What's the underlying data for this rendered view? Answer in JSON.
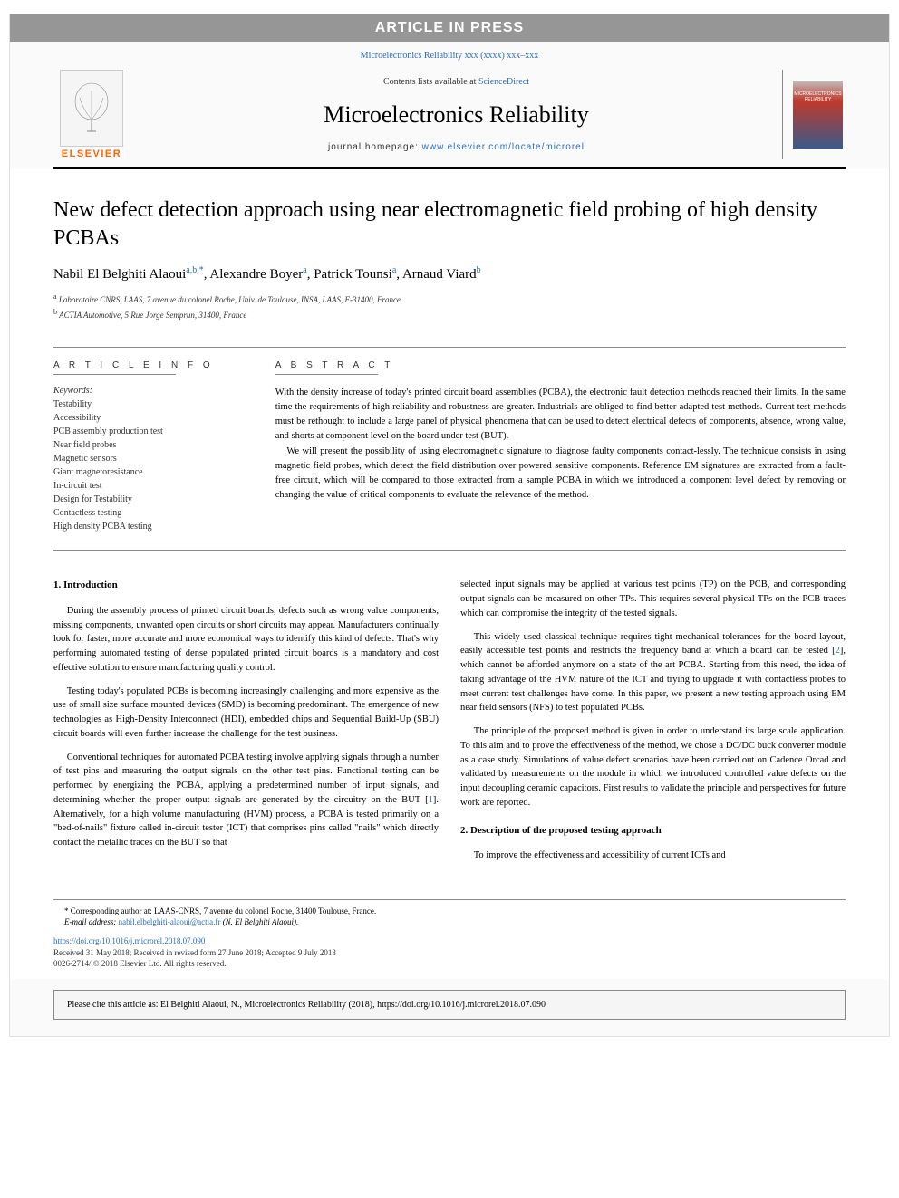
{
  "press_banner": "ARTICLE IN PRESS",
  "citation_top": "Microelectronics Reliability xxx (xxxx) xxx–xxx",
  "header": {
    "elsevier_label": "ELSEVIER",
    "contents_prefix": "Contents lists available at ",
    "contents_link": "ScienceDirect",
    "journal_name": "Microelectronics Reliability",
    "homepage_prefix": "journal homepage: ",
    "homepage_link": "www.elsevier.com/locate/microrel",
    "cover_text": "MICROELECTRONICS RELIABILITY"
  },
  "title": "New defect detection approach using near electromagnetic field probing of high density PCBAs",
  "authors_html": "Nabil El Belghiti Alaoui<sup>a,b,*</sup>, Alexandre Boyer<sup>a</sup>, Patrick Tounsi<sup>a</sup>, Arnaud Viard<sup>b</sup>",
  "affiliations": [
    {
      "sup": "a",
      "text": "Laboratoire CNRS, LAAS, 7 avenue du colonel Roche, Univ. de Toulouse, INSA, LAAS, F-31400, France"
    },
    {
      "sup": "b",
      "text": "ACTIA Automotive, 5 Rue Jorge Semprun, 31400, France"
    }
  ],
  "info": {
    "header": "A R T I C L E  I N F O",
    "keywords_label": "Keywords:",
    "keywords": [
      "Testability",
      "Accessibility",
      "PCB assembly production test",
      "Near field probes",
      "Magnetic sensors",
      "Giant magnetoresistance",
      "In-circuit test",
      "Design for Testability",
      "Contactless testing",
      "High density PCBA testing"
    ]
  },
  "abstract": {
    "header": "A B S T R A C T",
    "paragraphs": [
      "With the density increase of today's printed circuit board assemblies (PCBA), the electronic fault detection methods reached their limits. In the same time the requirements of high reliability and robustness are greater. Industrials are obliged to find better-adapted test methods. Current test methods must be rethought to include a large panel of physical phenomena that can be used to detect electrical defects of components, absence, wrong value, and shorts at component level on the board under test (BUT).",
      "We will present the possibility of using electromagnetic signature to diagnose faulty components contact-lessly. The technique consists in using magnetic field probes, which detect the field distribution over powered sensitive components. Reference EM signatures are extracted from a fault-free circuit, which will be compared to those extracted from a sample PCBA in which we introduced a component level defect by removing or changing the value of critical components to evaluate the relevance of the method."
    ]
  },
  "body": {
    "section1_heading": "1. Introduction",
    "col_left": [
      "During the assembly process of printed circuit boards, defects such as wrong value components, missing components, unwanted open circuits or short circuits may appear. Manufacturers continually look for faster, more accurate and more economical ways to identify this kind of defects. That's why performing automated testing of dense populated printed circuit boards is a mandatory and cost effective solution to ensure manufacturing quality control.",
      "Testing today's populated PCBs is becoming increasingly challenging and more expensive as the use of small size surface mounted devices (SMD) is becoming predominant. The emergence of new technologies as High-Density Interconnect (HDI), embedded chips and Sequential Build-Up (SBU) circuit boards will even further increase the challenge for the test business.",
      "Conventional techniques for automated PCBA testing involve applying signals through a number of test pins and measuring the output signals on the other test pins. Functional testing can be performed by energizing the PCBA, applying a predetermined number of input signals, and determining whether the proper output signals are generated by the circuitry on the BUT [<span class=\"ref-link\">1</span>]. Alternatively, for a high volume manufacturing (HVM) process, a PCBA is tested primarily on a \"bed-of-nails\" fixture called in-circuit tester (ICT) that comprises pins called \"nails\" which directly contact the metallic traces on the BUT so that"
    ],
    "col_right_intro": [
      "selected input signals may be applied at various test points (TP) on the PCB, and corresponding output signals can be measured on other TPs. This requires several physical TPs on the PCB traces which can compromise the integrity of the tested signals.",
      "This widely used classical technique requires tight mechanical tolerances for the board layout, easily accessible test points and restricts the frequency band at which a board can be tested [<span class=\"ref-link\">2</span>], which cannot be afforded anymore on a state of the art PCBA. Starting from this need, the idea of taking advantage of the HVM nature of the ICT and trying to upgrade it with contactless probes to meet current test challenges have come. In this paper, we present a new testing approach using EM near field sensors (NFS) to test populated PCBs.",
      "The principle of the proposed method is given in order to understand its large scale application. To this aim and to prove the effectiveness of the method, we chose a DC/DC buck converter module as a case study. Simulations of value defect scenarios have been carried out on Cadence Orcad and validated by measurements on the module in which we introduced controlled value defects on the input decoupling ceramic capacitors. First results to validate the principle and perspectives for future work are reported."
    ],
    "section2_heading": "2. Description of the proposed testing approach",
    "col_right_sec2": [
      "To improve the effectiveness and accessibility of current ICTs and"
    ]
  },
  "footer": {
    "corresponding_text": "* Corresponding author at: LAAS-CNRS, 7 avenue du colonel Roche, 31400 Toulouse, France.",
    "email_label": "E-mail address: ",
    "email": "nabil.elbelghiti-alaoui@actia.fr",
    "email_suffix": " (N. El Belghiti Alaoui).",
    "doi": "https://doi.org/10.1016/j.microrel.2018.07.090",
    "dates": "Received 31 May 2018; Received in revised form 27 June 2018; Accepted 9 July 2018",
    "issn": "0026-2714/ © 2018 Elsevier Ltd. All rights reserved."
  },
  "cite_box": "Please cite this article as: El Belghiti Alaoui, N., Microelectronics Reliability (2018), https://doi.org/10.1016/j.microrel.2018.07.090",
  "colors": {
    "banner_bg": "#969696",
    "link": "#2a6ebb",
    "elsevier_orange": "#ff6600",
    "divider": "#888888"
  }
}
